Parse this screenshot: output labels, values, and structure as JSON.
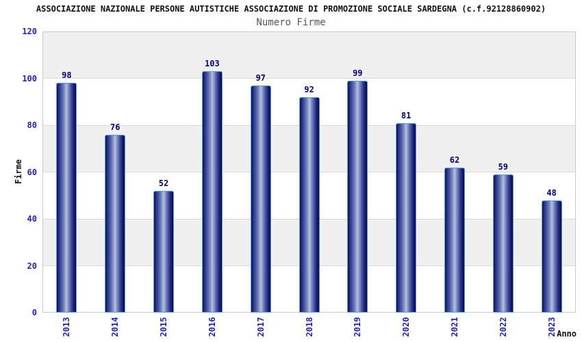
{
  "header": {
    "title": "ASSOCIAZIONE NAZIONALE PERSONE AUTISTICHE ASSOCIAZIONE DI PROMOZIONE SOCIALE SARDEGNA (c.f.92128860902)",
    "subtitle": "Numero Firme"
  },
  "chart_data": {
    "type": "bar",
    "title": "Numero Firme",
    "categories": [
      "2013",
      "2014",
      "2015",
      "2016",
      "2017",
      "2018",
      "2019",
      "2020",
      "2021",
      "2022",
      "2023"
    ],
    "values": [
      98,
      76,
      52,
      103,
      97,
      92,
      99,
      81,
      62,
      59,
      48
    ],
    "xlabel": "Anno",
    "ylabel": "Firme",
    "ylim": [
      0,
      120
    ],
    "ytick_step": 20,
    "grid": "horizontal",
    "legend": "none",
    "band_pattern": "alternating horizontal bands every 20 units, gray on 100-120 / 60-80 / 20-40",
    "colors": {
      "bar_dark": "#10105f",
      "bar_highlight": "#b6c0e0",
      "bar_outline": "#56a0e4",
      "value_label": "#000080",
      "tick_label": "#2222cc",
      "axis_title": "#111111",
      "title": "#101018",
      "subtitle": "#555555",
      "band_gray": "#f0f0f0",
      "grid_line": "#d9d9d9",
      "plot_border": "#c9c9c9"
    }
  }
}
